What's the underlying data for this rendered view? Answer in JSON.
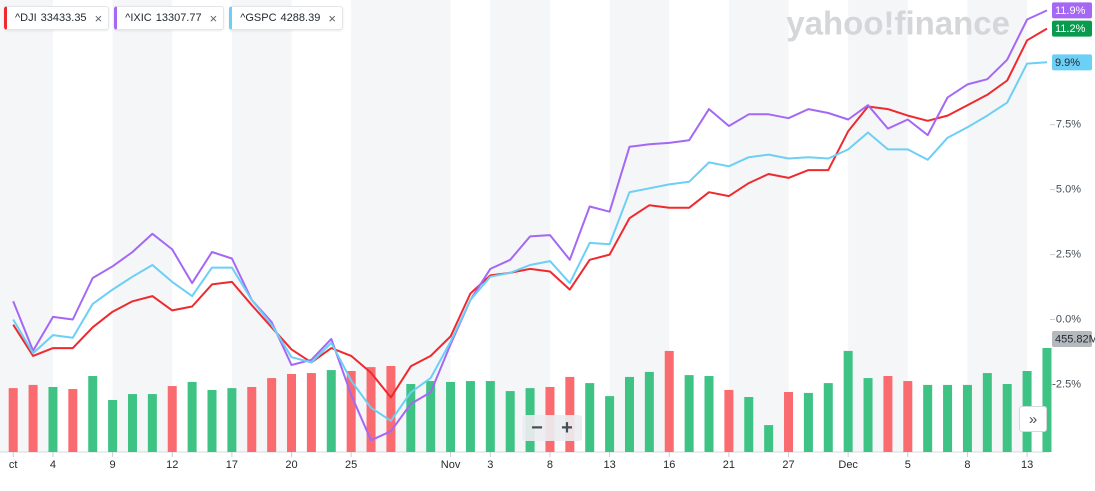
{
  "chart_data": {
    "type": "line",
    "watermark": "yahoo!finance",
    "categories": [
      "ct",
      null,
      "4",
      null,
      null,
      "9",
      null,
      null,
      "12",
      null,
      null,
      "17",
      null,
      null,
      "20",
      null,
      null,
      "25",
      null,
      null,
      null,
      null,
      "Nov",
      null,
      "3",
      null,
      null,
      "8",
      null,
      null,
      "13",
      null,
      null,
      "16",
      null,
      null,
      "21",
      null,
      null,
      "27",
      null,
      null,
      "Dec",
      null,
      null,
      "5",
      null,
      null,
      "8",
      null,
      null,
      "13",
      null
    ],
    "ylim": [
      -5.1,
      12.3
    ],
    "yticks": [
      {
        "value": -2.5,
        "label": "-2.5%"
      },
      {
        "value": 0,
        "label": "0.0%"
      },
      {
        "value": 2.5,
        "label": "2.5%"
      },
      {
        "value": 5,
        "label": "5.0%"
      },
      {
        "value": 7.5,
        "label": "7.5%"
      }
    ],
    "y2lim": [
      0,
      1981
    ],
    "grid": false,
    "series": [
      {
        "name": "^DJI",
        "quote": 33433.35,
        "color": "#ee2a2f",
        "badge_color": "#0a9a4e",
        "values": [
          -0.2,
          -1.4,
          -1.1,
          -1.1,
          -0.3,
          0.3,
          0.7,
          0.9,
          0.35,
          0.5,
          1.35,
          1.45,
          0.55,
          -0.3,
          -1.15,
          -1.65,
          -1.1,
          -1.4,
          -2.05,
          -3.0,
          -1.8,
          -1.4,
          -0.65,
          1.0,
          1.7,
          1.8,
          1.95,
          1.85,
          1.15,
          2.3,
          2.5,
          3.9,
          4.4,
          4.3,
          4.3,
          4.9,
          4.75,
          5.25,
          5.6,
          5.45,
          5.75,
          5.75,
          7.25,
          8.2,
          8.1,
          7.85,
          7.65,
          7.85,
          8.25,
          8.65,
          9.2,
          10.75,
          11.2
        ],
        "value_labels": [
          null,
          null,
          null,
          null,
          null,
          null,
          null,
          null,
          null,
          null,
          null,
          null,
          null,
          null,
          null,
          null,
          null,
          null,
          null,
          null,
          null,
          null,
          null,
          null,
          null,
          null,
          null,
          null,
          null,
          null,
          null,
          null,
          null,
          null,
          null,
          null,
          null,
          null,
          null,
          null,
          null,
          null,
          null,
          null,
          null,
          null,
          null,
          null,
          null,
          null,
          null,
          null,
          "11.2%"
        ]
      },
      {
        "name": "^IXIC",
        "quote": 13307.77,
        "color": "#a468f5",
        "badge_color": "#a468f5",
        "values": [
          0.7,
          -1.2,
          0.1,
          0.0,
          1.6,
          2.05,
          2.6,
          3.3,
          2.7,
          1.4,
          2.6,
          2.35,
          0.75,
          -0.1,
          -1.75,
          -1.55,
          -0.75,
          -2.9,
          -4.65,
          -4.3,
          -3.25,
          -2.8,
          -0.95,
          0.75,
          1.95,
          2.3,
          3.2,
          3.25,
          2.3,
          4.35,
          4.15,
          6.65,
          6.75,
          6.8,
          6.9,
          8.1,
          7.45,
          7.9,
          7.9,
          7.75,
          8.1,
          7.95,
          7.7,
          8.25,
          7.35,
          7.7,
          7.1,
          8.55,
          9.05,
          9.25,
          10.0,
          11.55,
          11.9
        ],
        "value_labels": [
          null,
          null,
          null,
          null,
          null,
          null,
          null,
          null,
          null,
          null,
          null,
          null,
          null,
          null,
          null,
          null,
          null,
          null,
          null,
          null,
          null,
          null,
          null,
          null,
          null,
          null,
          null,
          null,
          null,
          null,
          null,
          null,
          null,
          null,
          null,
          null,
          null,
          null,
          null,
          null,
          null,
          null,
          null,
          null,
          null,
          null,
          null,
          null,
          null,
          null,
          null,
          null,
          "11.9%"
        ]
      },
      {
        "name": "^GSPC",
        "quote": 4288.39,
        "color": "#6ccff6",
        "badge_color": "#6ccff6",
        "values": [
          0.0,
          -1.3,
          -0.6,
          -0.7,
          0.6,
          1.15,
          1.65,
          2.1,
          1.45,
          0.9,
          2.0,
          2.0,
          0.75,
          -0.2,
          -1.45,
          -1.65,
          -0.9,
          -2.35,
          -3.4,
          -3.9,
          -2.8,
          -2.25,
          -0.85,
          0.75,
          1.65,
          1.8,
          2.1,
          2.25,
          1.4,
          2.95,
          2.9,
          4.9,
          5.05,
          5.2,
          5.3,
          6.05,
          5.9,
          6.25,
          6.35,
          6.2,
          6.25,
          6.2,
          6.55,
          7.2,
          6.55,
          6.55,
          6.15,
          7.0,
          7.4,
          7.85,
          8.35,
          9.85,
          9.9
        ],
        "value_labels": [
          null,
          null,
          null,
          null,
          null,
          null,
          null,
          null,
          null,
          null,
          null,
          null,
          null,
          null,
          null,
          null,
          null,
          null,
          null,
          null,
          null,
          null,
          null,
          null,
          null,
          null,
          null,
          null,
          null,
          null,
          null,
          null,
          null,
          null,
          null,
          null,
          null,
          null,
          null,
          null,
          null,
          null,
          null,
          null,
          null,
          null,
          null,
          null,
          null,
          null,
          null,
          null,
          "9.9%"
        ]
      },
      {
        "type": "bar",
        "axis": "y2",
        "badge_color": "#b4b9be",
        "values": [
          280,
          294,
          285,
          276,
          333,
          228,
          254,
          254,
          289,
          307,
          272,
          280,
          285,
          324,
          342,
          346,
          359,
          355,
          372,
          377,
          298,
          311,
          307,
          311,
          311,
          267,
          280,
          285,
          329,
          302,
          245,
          329,
          351,
          443,
          337,
          333,
          272,
          241,
          118,
          263,
          259,
          302,
          443,
          324,
          333,
          311,
          294,
          294,
          294,
          346,
          298,
          355,
          455.82
        ],
        "value_labels": [
          null,
          null,
          null,
          null,
          null,
          null,
          null,
          null,
          null,
          null,
          null,
          null,
          null,
          null,
          null,
          null,
          null,
          null,
          null,
          null,
          null,
          null,
          null,
          null,
          null,
          null,
          null,
          null,
          null,
          null,
          null,
          null,
          null,
          null,
          null,
          null,
          null,
          null,
          null,
          null,
          null,
          null,
          null,
          null,
          null,
          null,
          null,
          null,
          null,
          null,
          null,
          null,
          "455.82M"
        ],
        "colors": [
          "#f96b6e",
          "#f96b6e",
          "#3ec385",
          "#f96b6e",
          "#3ec385",
          "#3ec385",
          "#3ec385",
          "#3ec385",
          "#f96b6e",
          "#3ec385",
          "#3ec385",
          "#3ec385",
          "#f96b6e",
          "#f96b6e",
          "#f96b6e",
          "#f96b6e",
          "#3ec385",
          "#f96b6e",
          "#f96b6e",
          "#f96b6e",
          "#3ec385",
          "#3ec385",
          "#3ec385",
          "#3ec385",
          "#3ec385",
          "#3ec385",
          "#3ec385",
          "#f96b6e",
          "#f96b6e",
          "#3ec385",
          "#3ec385",
          "#3ec385",
          "#3ec385",
          "#f96b6e",
          "#3ec385",
          "#3ec385",
          "#f96b6e",
          "#3ec385",
          "#3ec385",
          "#f96b6e",
          "#3ec385",
          "#3ec385",
          "#3ec385",
          "#3ec385",
          "#f96b6e",
          "#f96b6e",
          "#3ec385",
          "#3ec385",
          "#3ec385",
          "#3ec385",
          "#3ec385",
          "#3ec385",
          "#3ec385"
        ]
      }
    ]
  },
  "ui": {
    "zoom_out": "−",
    "zoom_in": "+",
    "more": "»",
    "close": "×"
  }
}
